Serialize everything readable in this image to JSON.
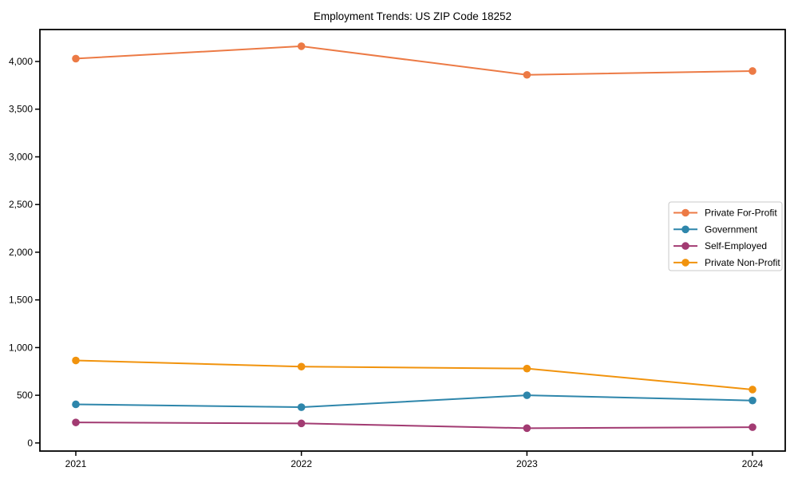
{
  "chart_data": {
    "type": "line",
    "title": "Employment Trends: US ZIP Code 18252",
    "xlabel": "",
    "ylabel": "",
    "x": [
      2021,
      2022,
      2023,
      2024
    ],
    "x_tick_labels": [
      "2021",
      "2022",
      "2023",
      "2024"
    ],
    "y_ticks": [
      0,
      500,
      1000,
      1500,
      2000,
      2500,
      3000,
      3500,
      4000
    ],
    "y_tick_labels": [
      "0",
      "500",
      "1,000",
      "1,500",
      "2,000",
      "2,500",
      "3,000",
      "3,500",
      "4,000"
    ],
    "ylim": [
      -85,
      4335
    ],
    "grid": false,
    "legend_position": "center right",
    "marker": "o",
    "series": [
      {
        "name": "Private For-Profit",
        "color": "#ec7a45",
        "values": [
          4030,
          4160,
          3860,
          3900
        ]
      },
      {
        "name": "Government",
        "color": "#2e86ab",
        "values": [
          405,
          375,
          500,
          445
        ]
      },
      {
        "name": "Self-Employed",
        "color": "#a23b72",
        "values": [
          215,
          205,
          155,
          165
        ]
      },
      {
        "name": "Private Non-Profit",
        "color": "#f1930d",
        "values": [
          865,
          800,
          780,
          560
        ]
      }
    ],
    "colors": {
      "axis": "#000000",
      "background": "#ffffff",
      "legend_border": "#c9c9c9"
    }
  }
}
